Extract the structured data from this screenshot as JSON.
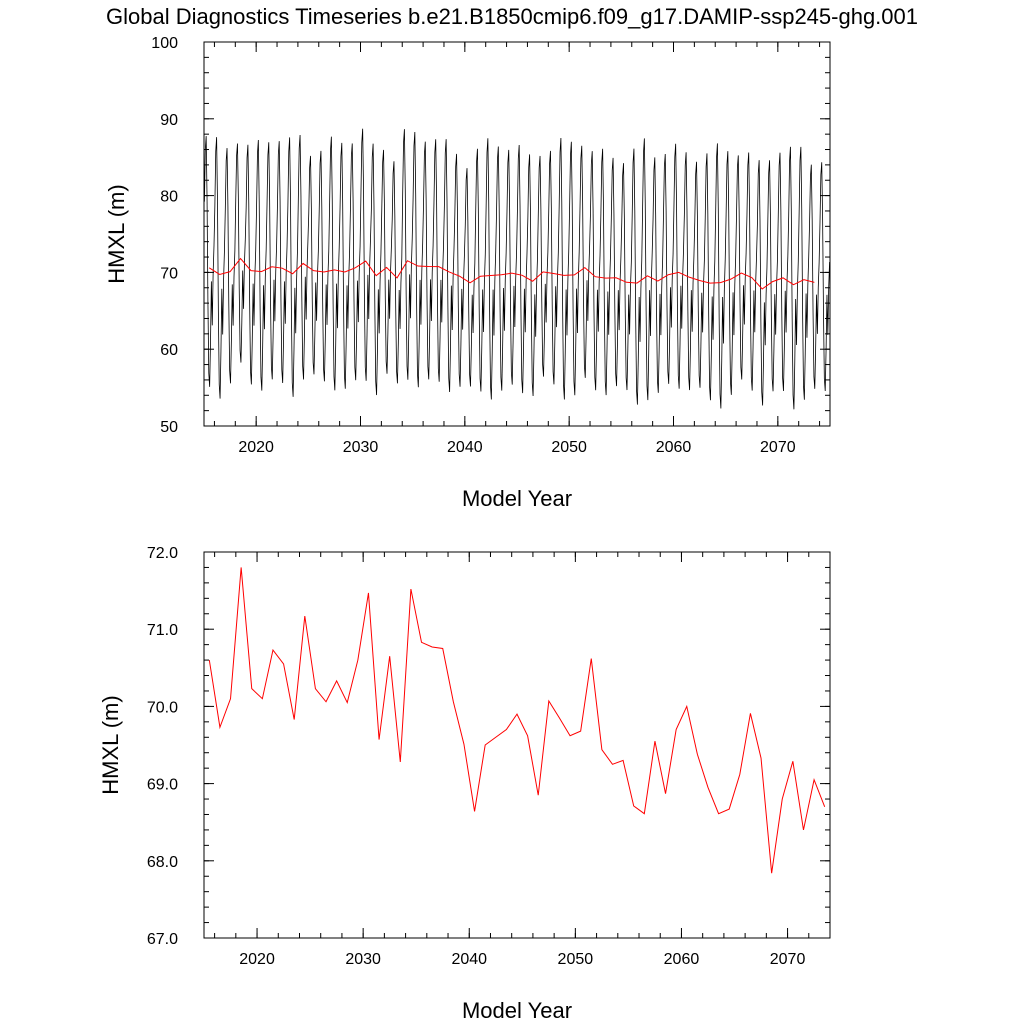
{
  "title": "Global Diagnostics Timeseries b.e21.B1850cmip6.f09_g17.DAMIP-ssp245-ghg.001",
  "colors": {
    "monthly": "#000000",
    "annual": "#ff0000"
  },
  "chart_data": [
    {
      "type": "line",
      "xlabel": "Model Year",
      "ylabel": "HMXL (m)",
      "xlim": [
        2015,
        2075
      ],
      "ylim": [
        50,
        100
      ],
      "xticks": [
        "2020",
        "2030",
        "2040",
        "2050",
        "2060",
        "2070"
      ],
      "yticks": [
        "50",
        "60",
        "70",
        "80",
        "90",
        "100"
      ],
      "monthly_cycle": [
        79.5,
        86.0,
        87.7,
        80.0,
        67.0,
        58.0,
        56.3,
        62.0,
        69.5,
        64.0,
        70.5,
        74.0
      ],
      "monthly_envelope_note": "seasonal cycle, annual maxima ~85-91, minima ~53-58",
      "series": [
        {
          "color": "#000000",
          "style": "monthly"
        },
        {
          "color": "#ff0000",
          "style": "annual mean"
        }
      ]
    },
    {
      "type": "line",
      "xlabel": "Model Year",
      "ylabel": "HMXL (m)",
      "xlim": [
        2015,
        2074
      ],
      "ylim": [
        67.0,
        72.0
      ],
      "xticks": [
        "2020",
        "2030",
        "2040",
        "2050",
        "2060",
        "2070"
      ],
      "yticks": [
        "67.0",
        "68.0",
        "69.0",
        "70.0",
        "71.0",
        "72.0"
      ],
      "x": [
        2015.5,
        2016.5,
        2017.5,
        2018.5,
        2019.5,
        2020.5,
        2021.5,
        2022.5,
        2023.5,
        2024.5,
        2025.5,
        2026.5,
        2027.5,
        2028.5,
        2029.5,
        2030.5,
        2031.5,
        2032.5,
        2033.5,
        2034.5,
        2035.5,
        2036.5,
        2037.5,
        2038.5,
        2039.5,
        2040.5,
        2041.5,
        2042.5,
        2043.5,
        2044.5,
        2045.5,
        2046.5,
        2047.5,
        2048.5,
        2049.5,
        2050.5,
        2051.5,
        2052.5,
        2053.5,
        2054.5,
        2055.5,
        2056.5,
        2057.5,
        2058.5,
        2059.5,
        2060.5,
        2061.5,
        2062.5,
        2063.5,
        2064.5,
        2065.5,
        2066.5,
        2067.5,
        2068.5,
        2069.5,
        2070.5,
        2071.5,
        2072.5,
        2073.5
      ],
      "values": [
        70.6,
        69.73,
        70.1,
        71.8,
        70.23,
        70.1,
        70.73,
        70.55,
        69.83,
        71.17,
        70.23,
        70.06,
        70.33,
        70.05,
        70.6,
        71.47,
        69.57,
        70.65,
        69.28,
        71.52,
        70.83,
        70.77,
        70.75,
        70.06,
        69.51,
        68.64,
        69.5,
        69.6,
        69.7,
        69.9,
        69.62,
        68.85,
        70.07,
        69.85,
        69.62,
        69.68,
        70.62,
        69.44,
        69.25,
        69.3,
        68.71,
        68.61,
        69.55,
        68.87,
        69.7,
        70.0,
        69.38,
        68.95,
        68.61,
        68.67,
        69.12,
        69.91,
        69.33,
        67.84,
        68.8,
        69.29,
        68.4,
        69.05,
        68.7
      ],
      "series": [
        {
          "color": "#ff0000"
        }
      ]
    }
  ]
}
